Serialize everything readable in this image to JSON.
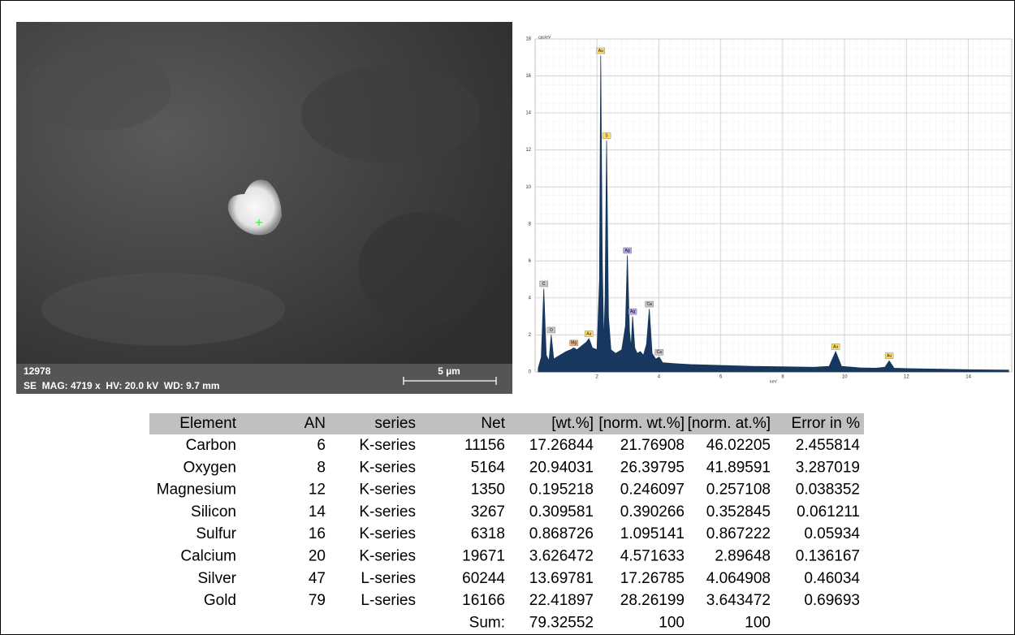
{
  "sem_image": {
    "image_id": "12978",
    "info": "SE  MAG: 4719 x  HV: 20.0 kV  WD: 9.7 mm",
    "scale_bar": "5 µm"
  },
  "chart_data": {
    "type": "area",
    "y_label": "cps/eV",
    "x_label": "keV",
    "color": "#17375e",
    "x": [
      0.1,
      0.2,
      0.28,
      0.36,
      0.45,
      0.52,
      0.6,
      0.8,
      1.0,
      1.15,
      1.25,
      1.35,
      1.5,
      1.65,
      1.74,
      1.85,
      2.0,
      2.08,
      2.12,
      2.17,
      2.22,
      2.26,
      2.31,
      2.37,
      2.45,
      2.6,
      2.8,
      2.92,
      2.98,
      3.05,
      3.1,
      3.15,
      3.22,
      3.3,
      3.4,
      3.5,
      3.6,
      3.69,
      3.78,
      3.9,
      4.01,
      4.12,
      4.5,
      5,
      6,
      7,
      8,
      9,
      9.5,
      9.71,
      9.9,
      10.5,
      11,
      11.3,
      11.44,
      11.6,
      12,
      13,
      14,
      15.3
    ],
    "values": [
      0.2,
      0.8,
      4.5,
      0.9,
      0.6,
      2.0,
      0.7,
      0.9,
      1.1,
      1.2,
      1.3,
      1.2,
      1.4,
      1.6,
      1.8,
      1.3,
      1.2,
      5,
      17.1,
      6,
      1.5,
      4,
      12.5,
      3,
      1.2,
      1.0,
      1.2,
      2.5,
      6.3,
      2.2,
      1.3,
      3.0,
      1.3,
      1.0,
      1.1,
      0.9,
      1.5,
      3.4,
      1.0,
      0.7,
      0.8,
      0.5,
      0.45,
      0.4,
      0.35,
      0.3,
      0.28,
      0.25,
      0.3,
      1.1,
      0.3,
      0.22,
      0.2,
      0.25,
      0.6,
      0.2,
      0.18,
      0.15,
      0.12,
      0.1
    ],
    "xlim": [
      0,
      15.4
    ],
    "ylim": [
      0,
      18
    ],
    "xticks": [
      2,
      4,
      6,
      8,
      10,
      12,
      14
    ],
    "yticks": [
      0,
      2,
      4,
      6,
      8,
      10,
      12,
      14,
      16,
      18
    ],
    "grid": true,
    "annotations": [
      {
        "label": "C",
        "x": 0.28,
        "y": 4.5,
        "color": "#c8c8c8"
      },
      {
        "label": "O",
        "x": 0.52,
        "y": 2.0,
        "color": "#c8c8c8"
      },
      {
        "label": "Mg",
        "x": 1.25,
        "y": 1.3,
        "color": "#f4b183"
      },
      {
        "label": "Au",
        "x": 1.74,
        "y": 1.8,
        "color": "#ffe066"
      },
      {
        "label": "Au",
        "x": 2.12,
        "y": 17.1,
        "color": "#ffe066"
      },
      {
        "label": "S",
        "x": 2.31,
        "y": 12.5,
        "color": "#ffe066"
      },
      {
        "label": "Ag",
        "x": 2.98,
        "y": 6.3,
        "color": "#b4a7e5"
      },
      {
        "label": "Ag",
        "x": 3.15,
        "y": 3.0,
        "color": "#b4a7e5"
      },
      {
        "label": "Ca",
        "x": 3.69,
        "y": 3.4,
        "color": "#c8c8c8"
      },
      {
        "label": "Ca",
        "x": 4.01,
        "y": 0.8,
        "color": "#c8c8c8"
      },
      {
        "label": "Au",
        "x": 9.71,
        "y": 1.1,
        "color": "#ffe066"
      },
      {
        "label": "Au",
        "x": 11.44,
        "y": 0.6,
        "color": "#ffe066"
      }
    ]
  },
  "table": {
    "header": [
      "Element",
      "AN",
      "series",
      "Net",
      "[wt.%]",
      "[norm. wt.%]",
      "[norm. at.%]",
      "Error in %"
    ],
    "rows": [
      [
        "Carbon",
        "6",
        "K-series",
        "11156",
        "17.26844",
        "21.76908",
        "46.02205",
        "2.455814"
      ],
      [
        "Oxygen",
        "8",
        "K-series",
        "5164",
        "20.94031",
        "26.39795",
        "41.89591",
        "3.287019"
      ],
      [
        "Magnesium",
        "12",
        "K-series",
        "1350",
        "0.195218",
        "0.246097",
        "0.257108",
        "0.038352"
      ],
      [
        "Silicon",
        "14",
        "K-series",
        "3267",
        "0.309581",
        "0.390266",
        "0.352845",
        "0.061211"
      ],
      [
        "Sulfur",
        "16",
        "K-series",
        "6318",
        "0.868726",
        "1.095141",
        "0.867222",
        "0.05934"
      ],
      [
        "Calcium",
        "20",
        "K-series",
        "19671",
        "3.626472",
        "4.571633",
        "2.89648",
        "0.136167"
      ],
      [
        "Silver",
        "47",
        "L-series",
        "60244",
        "13.69781",
        "17.26785",
        "4.064908",
        "0.46034"
      ],
      [
        "Gold",
        "79",
        "L-series",
        "16166",
        "22.41897",
        "28.26199",
        "3.643472",
        "0.69693"
      ]
    ],
    "sum_row": {
      "label": "Sum:",
      "values": [
        "79.32552",
        "100",
        "100"
      ]
    }
  }
}
